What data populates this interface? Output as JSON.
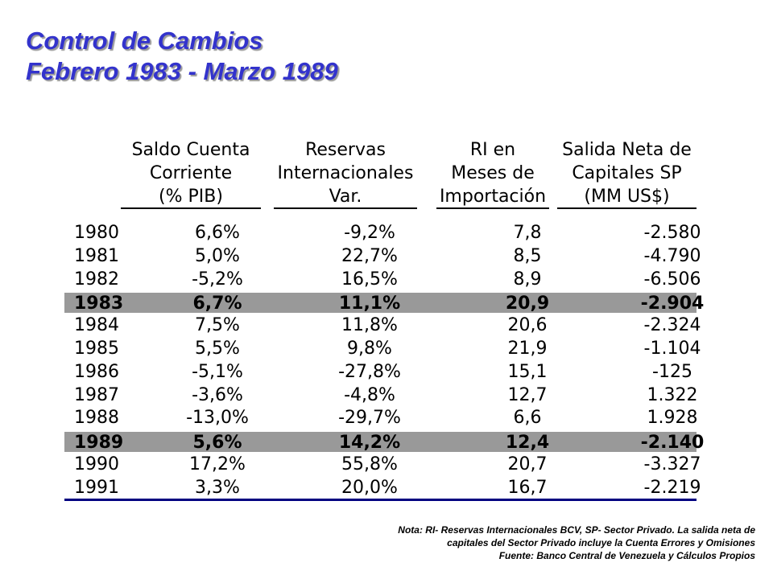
{
  "title": {
    "line1": "Control de Cambios",
    "line2": "Febrero 1983 - Marzo 1989"
  },
  "table": {
    "headers": [
      [
        "Saldo Cuenta",
        "Corriente",
        "(% PIB)"
      ],
      [
        "Reservas",
        "Internacionales",
        "Var."
      ],
      [
        "RI en",
        "Meses de",
        "Importación"
      ],
      [
        "Salida Neta de",
        "Capitales SP",
        "(MM US$)"
      ]
    ],
    "rows": [
      {
        "year": "1980",
        "c1": "6,6%",
        "c2": "-9,2%",
        "c3": "7,8",
        "c4": "-2.580",
        "highlight": false
      },
      {
        "year": "1981",
        "c1": "5,0%",
        "c2": "22,7%",
        "c3": "8,5",
        "c4": "-4.790",
        "highlight": false
      },
      {
        "year": "1982",
        "c1": "-5,2%",
        "c2": "16,5%",
        "c3": "8,9",
        "c4": "-6.506",
        "highlight": false
      },
      {
        "year": "1983",
        "c1": "6,7%",
        "c2": "11,1%",
        "c3": "20,9",
        "c4": "-2.904",
        "highlight": true
      },
      {
        "year": "1984",
        "c1": "7,5%",
        "c2": "11,8%",
        "c3": "20,6",
        "c4": "-2.324",
        "highlight": false
      },
      {
        "year": "1985",
        "c1": "5,5%",
        "c2": "9,8%",
        "c3": "21,9",
        "c4": "-1.104",
        "highlight": false
      },
      {
        "year": "1986",
        "c1": "-5,1%",
        "c2": "-27,8%",
        "c3": "15,1",
        "c4": "-125",
        "highlight": false
      },
      {
        "year": "1987",
        "c1": "-3,6%",
        "c2": "-4,8%",
        "c3": "12,7",
        "c4": "1.322",
        "highlight": false
      },
      {
        "year": "1988",
        "c1": "-13,0%",
        "c2": "-29,7%",
        "c3": "6,6",
        "c4": "1.928",
        "highlight": false
      },
      {
        "year": "1989",
        "c1": "5,6%",
        "c2": "14,2%",
        "c3": "12,4",
        "c4": "-2.140",
        "highlight": true
      },
      {
        "year": "1990",
        "c1": "17,2%",
        "c2": "55,8%",
        "c3": "20,7",
        "c4": "-3.327",
        "highlight": false
      },
      {
        "year": "1991",
        "c1": "3,3%",
        "c2": "20,0%",
        "c3": "16,7",
        "c4": "-2.219",
        "highlight": false
      }
    ]
  },
  "note": {
    "line1": "Nota: RI- Reservas Internacionales BCV, SP- Sector Privado.  La salida neta de",
    "line2": "capitales del Sector Privado incluye la Cuenta Errores y Omisiones",
    "line3": "Fuente: Banco Central de Venezuela y Cálculos Propios"
  },
  "colors": {
    "title": "#3333cc",
    "highlight_row": "#999999",
    "bottom_rule": "#000080"
  }
}
